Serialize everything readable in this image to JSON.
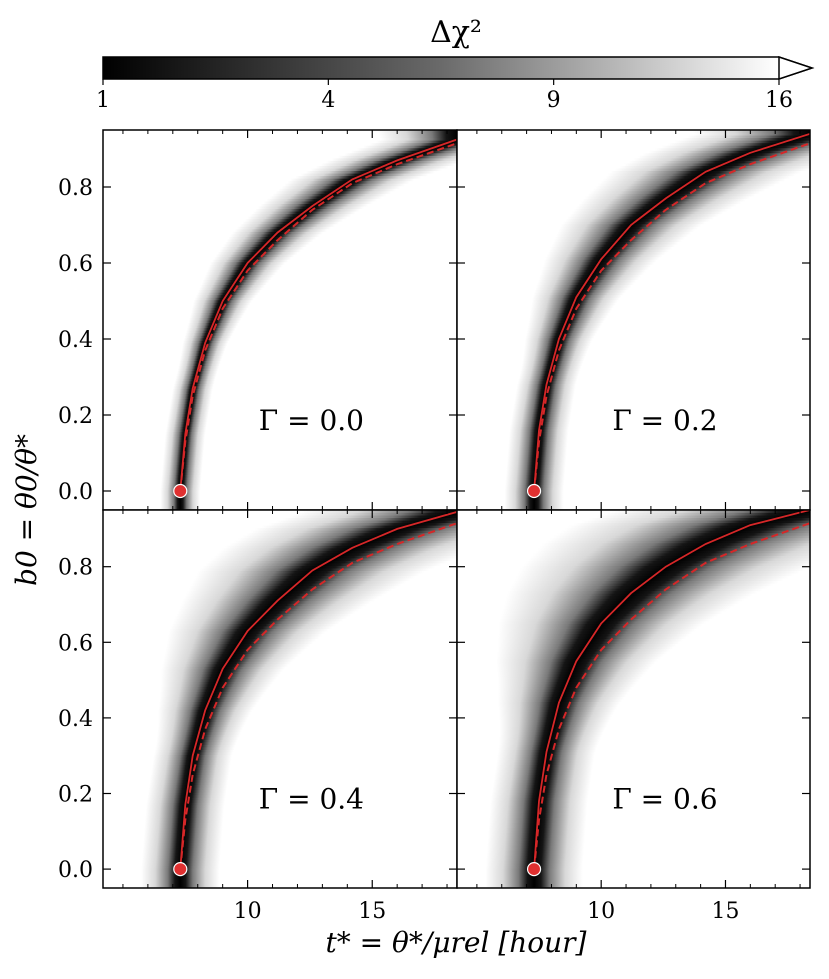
{
  "chart_data": {
    "type": "heatmap",
    "layout": "2x2 shared axes",
    "colorbar": {
      "label": "Δχ²",
      "tick_values": [
        1,
        4,
        9,
        16
      ],
      "tick_labels": [
        "1",
        "4",
        "9",
        "16"
      ],
      "colormap": "gray",
      "extend": "max"
    },
    "xlabel": "t* = θ*/μrel [hour]",
    "ylabel": "b0 = θ0/θ*",
    "xlim": [
      4.2,
      18.4
    ],
    "ylim": [
      -0.05,
      0.95
    ],
    "xticks": [
      10,
      15
    ],
    "xtick_labels": [
      "10",
      "15"
    ],
    "yticks": [
      0.0,
      0.2,
      0.4,
      0.6,
      0.8
    ],
    "ytick_labels": [
      "0.0",
      "0.2",
      "0.4",
      "0.6",
      "0.8"
    ],
    "marker": {
      "x": 7.3,
      "y": 0.0,
      "color": "#e03030"
    },
    "curve_color": "#d62728",
    "panels": [
      {
        "label": "Γ = 0.0",
        "min_curve": {
          "x": [
            7.3,
            7.5,
            7.8,
            8.3,
            9.0,
            10.0,
            11.2,
            12.6,
            14.2,
            16.0,
            18.4
          ],
          "y": [
            0.0,
            0.15,
            0.27,
            0.39,
            0.5,
            0.6,
            0.68,
            0.75,
            0.82,
            0.87,
            0.925
          ]
        },
        "approx_curve": {
          "x": [
            7.3,
            7.5,
            7.8,
            8.3,
            9.0,
            10.0,
            11.2,
            12.6,
            14.2,
            16.0,
            18.4
          ],
          "y": [
            0.0,
            0.13,
            0.25,
            0.37,
            0.48,
            0.58,
            0.66,
            0.74,
            0.81,
            0.86,
            0.915
          ]
        }
      },
      {
        "label": "Γ = 0.2",
        "min_curve": {
          "x": [
            7.3,
            7.5,
            7.8,
            8.3,
            9.0,
            10.0,
            11.2,
            12.6,
            14.2,
            16.0,
            18.4
          ],
          "y": [
            0.0,
            0.16,
            0.28,
            0.4,
            0.51,
            0.61,
            0.7,
            0.77,
            0.84,
            0.89,
            0.94
          ]
        },
        "approx_curve": {
          "x": [
            7.3,
            7.5,
            7.8,
            8.3,
            9.0,
            10.0,
            11.2,
            12.6,
            14.2,
            16.0,
            18.4
          ],
          "y": [
            0.0,
            0.13,
            0.25,
            0.37,
            0.48,
            0.58,
            0.66,
            0.74,
            0.81,
            0.86,
            0.915
          ]
        }
      },
      {
        "label": "Γ = 0.4",
        "min_curve": {
          "x": [
            7.3,
            7.5,
            7.8,
            8.3,
            9.0,
            10.0,
            11.2,
            12.6,
            14.2,
            16.0,
            18.4
          ],
          "y": [
            0.0,
            0.17,
            0.3,
            0.42,
            0.53,
            0.63,
            0.71,
            0.79,
            0.85,
            0.9,
            0.945
          ]
        },
        "approx_curve": {
          "x": [
            7.3,
            7.5,
            7.8,
            8.3,
            9.0,
            10.0,
            11.2,
            12.6,
            14.2,
            16.0,
            18.4
          ],
          "y": [
            0.0,
            0.13,
            0.25,
            0.37,
            0.48,
            0.58,
            0.66,
            0.74,
            0.81,
            0.86,
            0.915
          ]
        }
      },
      {
        "label": "Γ = 0.6",
        "min_curve": {
          "x": [
            7.3,
            7.5,
            7.8,
            8.3,
            9.0,
            10.0,
            11.2,
            12.6,
            14.2,
            16.0,
            18.4
          ],
          "y": [
            0.0,
            0.18,
            0.31,
            0.44,
            0.55,
            0.65,
            0.73,
            0.8,
            0.86,
            0.91,
            0.95
          ]
        },
        "approx_curve": {
          "x": [
            7.3,
            7.5,
            7.8,
            8.3,
            9.0,
            10.0,
            11.2,
            12.6,
            14.2,
            16.0,
            18.4
          ],
          "y": [
            0.0,
            0.13,
            0.25,
            0.37,
            0.48,
            0.58,
            0.66,
            0.74,
            0.81,
            0.86,
            0.915
          ]
        }
      }
    ]
  }
}
